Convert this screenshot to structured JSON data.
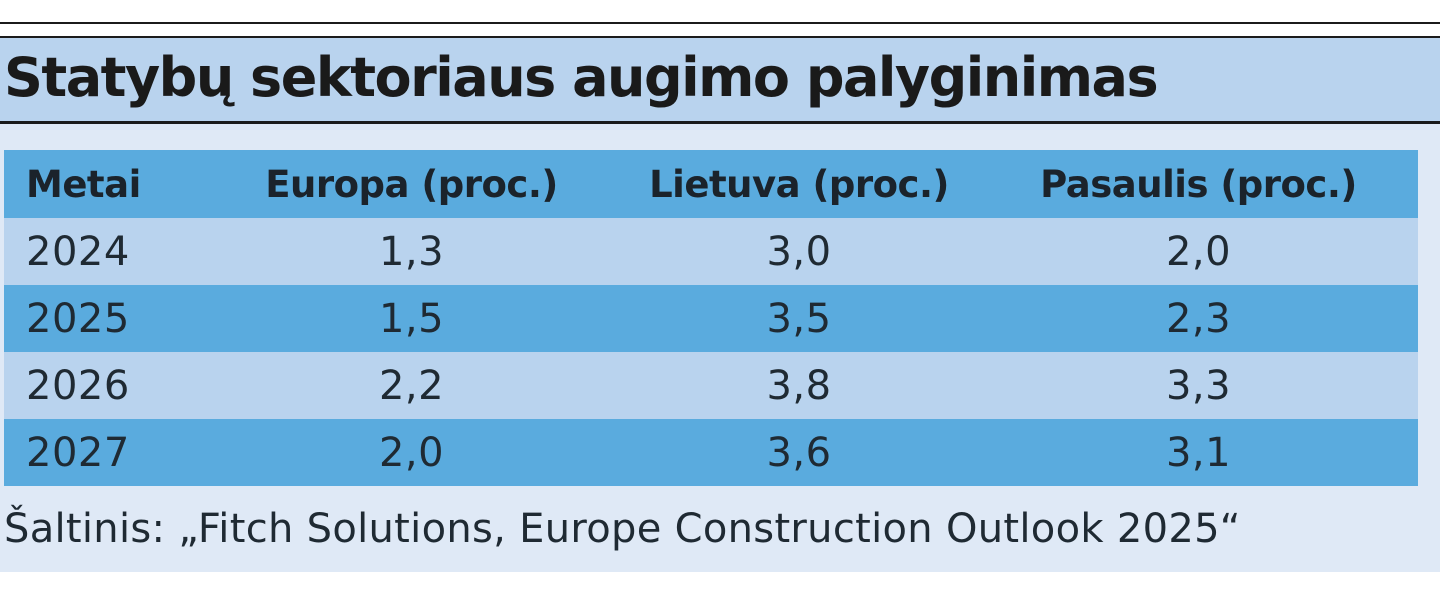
{
  "chart_data": {
    "type": "table",
    "title": "Statybų sektoriaus augimo palyginimas",
    "columns": [
      "Metai",
      "Europa (proc.)",
      "Lietuva (proc.)",
      "Pasaulis (proc.)"
    ],
    "rows": [
      [
        "2024",
        "1,3",
        "3,0",
        "2,0"
      ],
      [
        "2025",
        "1,5",
        "3,5",
        "2,3"
      ],
      [
        "2026",
        "2,2",
        "3,8",
        "3,3"
      ],
      [
        "2027",
        "2,0",
        "3,6",
        "3,1"
      ]
    ],
    "source": "Šaltinis: „Fitch Solutions, Europe Construction Outlook 2025“"
  },
  "colors": {
    "header_row": "#5aabde",
    "light_row": "#b9d3ee",
    "dark_row": "#5aabde",
    "title_band": "#b9d3ee",
    "panel_background": "#dfe9f6",
    "text": "#1f2a33"
  }
}
